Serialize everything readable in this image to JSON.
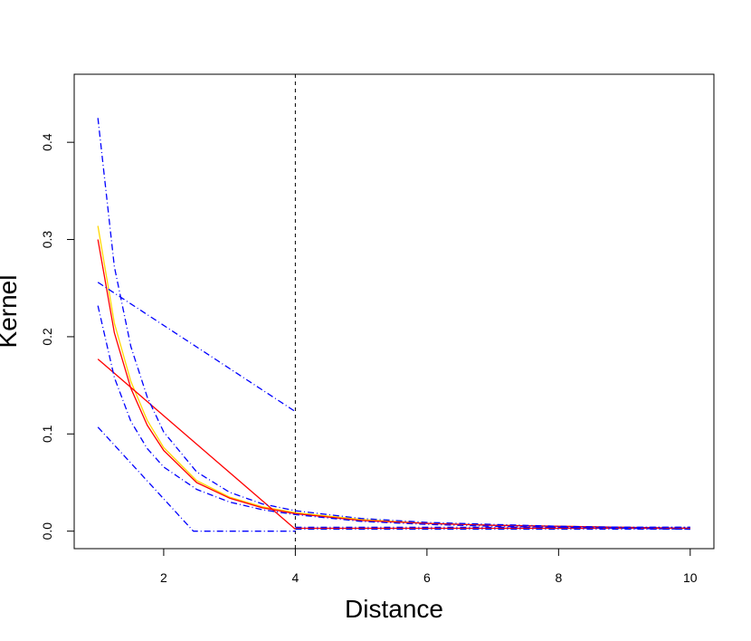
{
  "chart_data": {
    "type": "line",
    "title": "",
    "xlabel": "Distance",
    "ylabel": "Kernel",
    "xlim": [
      0.64,
      10.36
    ],
    "ylim": [
      -0.018,
      0.47
    ],
    "x_ticks": [
      2,
      4,
      6,
      8,
      10
    ],
    "y_ticks": [
      0.0,
      0.1,
      0.2,
      0.3,
      0.4
    ],
    "x_tick_labels": [
      "2",
      "4",
      "6",
      "8",
      "10"
    ],
    "y_tick_labels": [
      "0.0",
      "0.1",
      "0.2",
      "0.3",
      "0.4"
    ],
    "grid": false,
    "legend": "none",
    "vlines": [
      {
        "x": 4,
        "color": "#000000",
        "dash": "dashed"
      }
    ],
    "series": [
      {
        "color": "#ffd700",
        "dash": "solid",
        "x": [
          1.0,
          1.25,
          1.5,
          1.75,
          2.0,
          2.5,
          3.0,
          3.5,
          4.0,
          5.0,
          6.0,
          7.0,
          8.0,
          9.0,
          10.0
        ],
        "y": [
          0.314,
          0.214,
          0.154,
          0.114,
          0.086,
          0.052,
          0.035,
          0.025,
          0.019,
          0.012,
          0.008,
          0.006,
          0.005,
          0.004,
          0.003
        ]
      },
      {
        "color": "#ff0000",
        "dash": "solid",
        "x": [
          1.0,
          1.25,
          1.5,
          1.75,
          2.0,
          2.5,
          3.0,
          3.5,
          4.0,
          5.0,
          6.0,
          7.0,
          8.0,
          9.0,
          10.0
        ],
        "y": [
          0.3,
          0.204,
          0.147,
          0.109,
          0.083,
          0.05,
          0.034,
          0.024,
          0.018,
          0.011,
          0.008,
          0.006,
          0.005,
          0.004,
          0.003
        ]
      },
      {
        "color": "#ff0000",
        "dash": "solid",
        "x": [
          1.0,
          4.0
        ],
        "y": [
          0.177,
          0.002
        ]
      },
      {
        "color": "#ff0000",
        "dash": "solid",
        "x": [
          4.0,
          10.0
        ],
        "y": [
          0.003,
          0.003
        ]
      },
      {
        "color": "#0000ff",
        "dash": "dotdash",
        "x": [
          1.0,
          1.25,
          1.5,
          1.75,
          2.0,
          2.5,
          3.0,
          3.5,
          4.0,
          5.0,
          6.0,
          7.0,
          8.0,
          9.0,
          10.0
        ],
        "y": [
          0.425,
          0.272,
          0.19,
          0.138,
          0.102,
          0.061,
          0.04,
          0.028,
          0.021,
          0.013,
          0.009,
          0.007,
          0.005,
          0.004,
          0.004
        ]
      },
      {
        "color": "#0000ff",
        "dash": "dotdash",
        "x": [
          1.0,
          1.25,
          1.5,
          1.75,
          2.0,
          2.5,
          3.0,
          3.5,
          4.0,
          5.0,
          6.0,
          7.0,
          8.0,
          9.0,
          10.0
        ],
        "y": [
          0.232,
          0.158,
          0.113,
          0.085,
          0.066,
          0.043,
          0.03,
          0.022,
          0.017,
          0.01,
          0.007,
          0.005,
          0.004,
          0.003,
          0.002
        ]
      },
      {
        "color": "#0000ff",
        "dash": "dotdash",
        "x": [
          1.0,
          4.0
        ],
        "y": [
          0.256,
          0.123
        ]
      },
      {
        "color": "#0000ff",
        "dash": "dotdash",
        "x": [
          1.0,
          2.45,
          4.0
        ],
        "y": [
          0.107,
          0.0,
          0.0
        ]
      },
      {
        "color": "#0000ff",
        "dash": "dotdash",
        "x": [
          4.0,
          10.0
        ],
        "y": [
          0.004,
          0.004
        ]
      },
      {
        "color": "#0000ff",
        "dash": "dotdash",
        "x": [
          4.0,
          10.0
        ],
        "y": [
          0.002,
          0.002
        ]
      }
    ]
  }
}
